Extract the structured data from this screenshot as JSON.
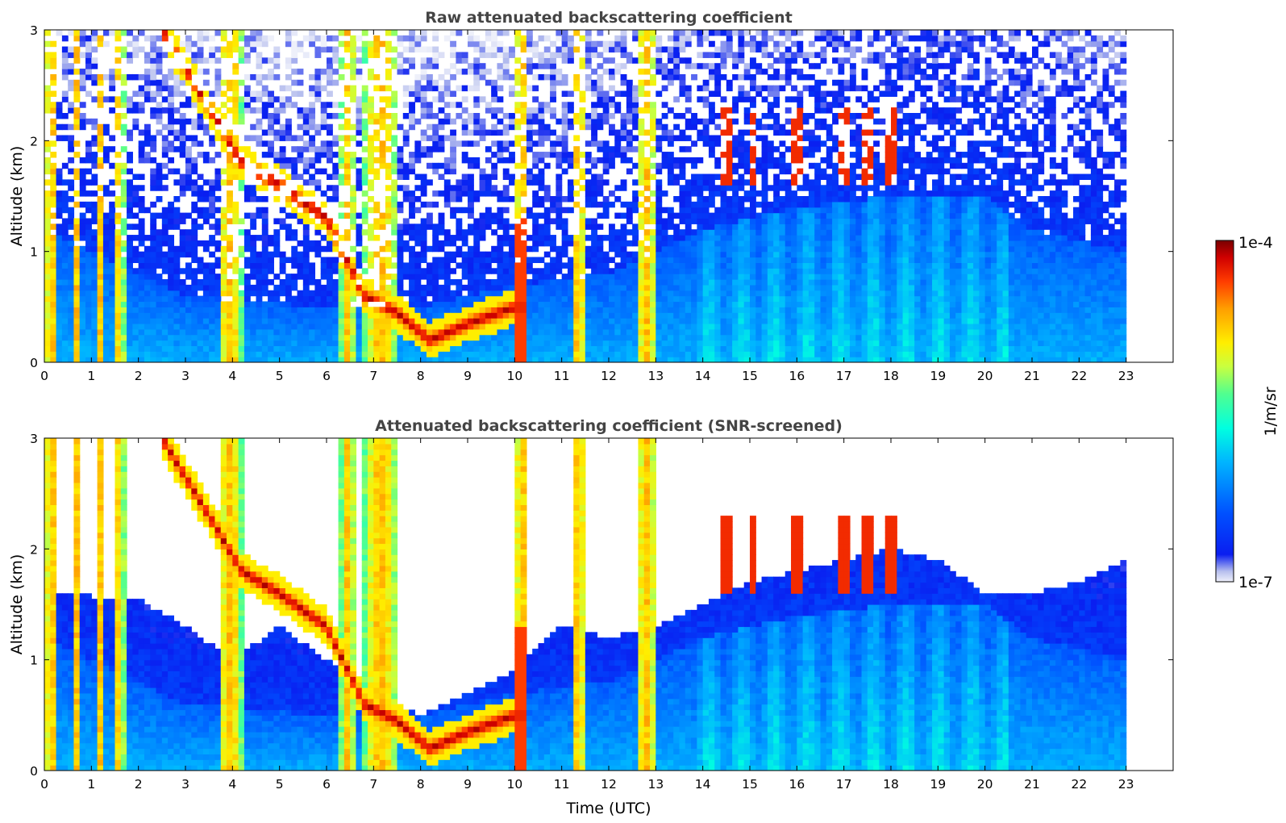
{
  "figure": {
    "xlabel": "Time (UTC)",
    "colorbar": {
      "label": "1/m/sr",
      "max_label": "1e-4",
      "min_label": "1e-7",
      "scale": "log",
      "colormap": "jet-like, white at minimum",
      "colors": [
        "#eef0fa",
        "#b8c0ee",
        "#0a1ef0",
        "#0050ff",
        "#00b4ff",
        "#00ffe0",
        "#50ff90",
        "#c8ff40",
        "#ffee00",
        "#ff9e00",
        "#ff3c00",
        "#d00000",
        "#7a0000"
      ]
    }
  },
  "chart_data": [
    {
      "type": "heatmap",
      "title": "Raw attenuated backscattering coefficient",
      "xlabel": "",
      "ylabel": "Altitude (km)",
      "x_ticks": [
        "0",
        "1",
        "2",
        "3",
        "4",
        "5",
        "6",
        "7",
        "8",
        "9",
        "10",
        "11",
        "12",
        "13",
        "14",
        "15",
        "16",
        "17",
        "18",
        "19",
        "20",
        "21",
        "22",
        "23"
      ],
      "y_ticks": [
        "0",
        "1",
        "2",
        "3"
      ],
      "xlim": [
        0,
        24
      ],
      "ylim": [
        0,
        3
      ],
      "data_extent_x": [
        0,
        23
      ],
      "screened": false,
      "features": {
        "boundary_layer_top_km": [
          [
            0,
            1.2
          ],
          [
            3,
            0.6
          ],
          [
            6,
            0.5
          ],
          [
            8,
            0.5
          ],
          [
            10,
            0.7
          ],
          [
            12,
            0.8
          ],
          [
            14,
            1.2
          ],
          [
            16,
            1.4
          ],
          [
            18,
            1.5
          ],
          [
            20,
            1.5
          ],
          [
            21,
            1.2
          ],
          [
            23,
            1.0
          ]
        ],
        "cloud_layer": [
          [
            2.5,
            3.0
          ],
          [
            3.5,
            2.3
          ],
          [
            4.2,
            1.8
          ],
          [
            5.0,
            1.6
          ],
          [
            6.0,
            1.3
          ],
          [
            6.8,
            0.6
          ],
          [
            7.5,
            0.45
          ],
          [
            8.2,
            0.2
          ],
          [
            9.0,
            0.35
          ],
          [
            10.0,
            0.5
          ]
        ],
        "rain_columns": [
          [
            0.0,
            0.3
          ],
          [
            0.6,
            0.8
          ],
          [
            1.1,
            1.3
          ],
          [
            1.5,
            1.7
          ],
          [
            3.7,
            4.2
          ],
          [
            6.3,
            6.6
          ],
          [
            6.8,
            7.5
          ],
          [
            10.0,
            10.3
          ],
          [
            11.2,
            11.5
          ],
          [
            12.6,
            13.0
          ]
        ],
        "high_clouds": [
          [
            14.5,
            2.0
          ],
          [
            15.1,
            2.0
          ],
          [
            16.0,
            2.0
          ],
          [
            17.0,
            2.1
          ],
          [
            17.5,
            2.1
          ],
          [
            18.0,
            2.1
          ]
        ]
      }
    },
    {
      "type": "heatmap",
      "title": "Attenuated backscattering coefficient (SNR-screened)",
      "xlabel": "Time (UTC)",
      "ylabel": "Altitude (km)",
      "x_ticks": [
        "0",
        "1",
        "2",
        "3",
        "4",
        "5",
        "6",
        "7",
        "8",
        "9",
        "10",
        "11",
        "12",
        "13",
        "14",
        "15",
        "16",
        "17",
        "18",
        "19",
        "20",
        "21",
        "22",
        "23"
      ],
      "y_ticks": [
        "0",
        "1",
        "2",
        "3"
      ],
      "xlim": [
        0,
        24
      ],
      "ylim": [
        0,
        3
      ],
      "data_extent_x": [
        0,
        23
      ],
      "screened": true,
      "features": {
        "valid_signal_top_km": [
          [
            0,
            1.6
          ],
          [
            2,
            1.55
          ],
          [
            3,
            1.3
          ],
          [
            4,
            1.0
          ],
          [
            5,
            1.3
          ],
          [
            6,
            1.0
          ],
          [
            7,
            0.7
          ],
          [
            8,
            0.5
          ],
          [
            9,
            0.7
          ],
          [
            10,
            0.9
          ],
          [
            11,
            1.3
          ],
          [
            12,
            1.2
          ],
          [
            13,
            1.3
          ],
          [
            14,
            1.5
          ],
          [
            15,
            1.7
          ],
          [
            16,
            1.8
          ],
          [
            17,
            1.9
          ],
          [
            18,
            2.0
          ],
          [
            19,
            1.9
          ],
          [
            20,
            1.6
          ],
          [
            21,
            1.6
          ],
          [
            22,
            1.7
          ],
          [
            23,
            1.9
          ]
        ]
      }
    }
  ]
}
